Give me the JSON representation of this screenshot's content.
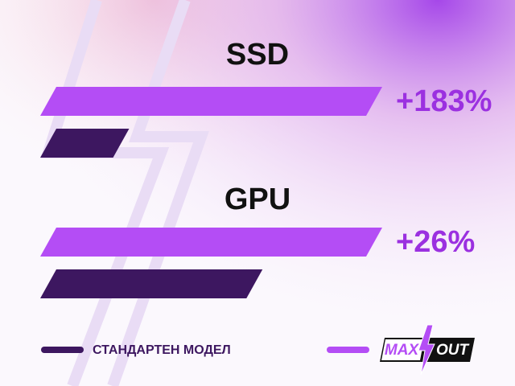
{
  "chart_data": {
    "type": "bar",
    "orientation": "horizontal",
    "categories": [
      "SSD",
      "GPU"
    ],
    "series": [
      {
        "logo": [
          "MAX",
          "OUT"
        ],
        "color": "#b44df5",
        "values": [
          100,
          100
        ]
      },
      {
        "name": "СТАНДАРТЕН МОДЕЛ",
        "color": "#3d1760",
        "values": [
          26,
          65
        ]
      }
    ],
    "gains": {
      "values": [
        183,
        26
      ],
      "value_labels": [
        "+183%",
        "+26%"
      ],
      "color": "#9b30e0"
    },
    "xlim": [
      0,
      100
    ]
  }
}
